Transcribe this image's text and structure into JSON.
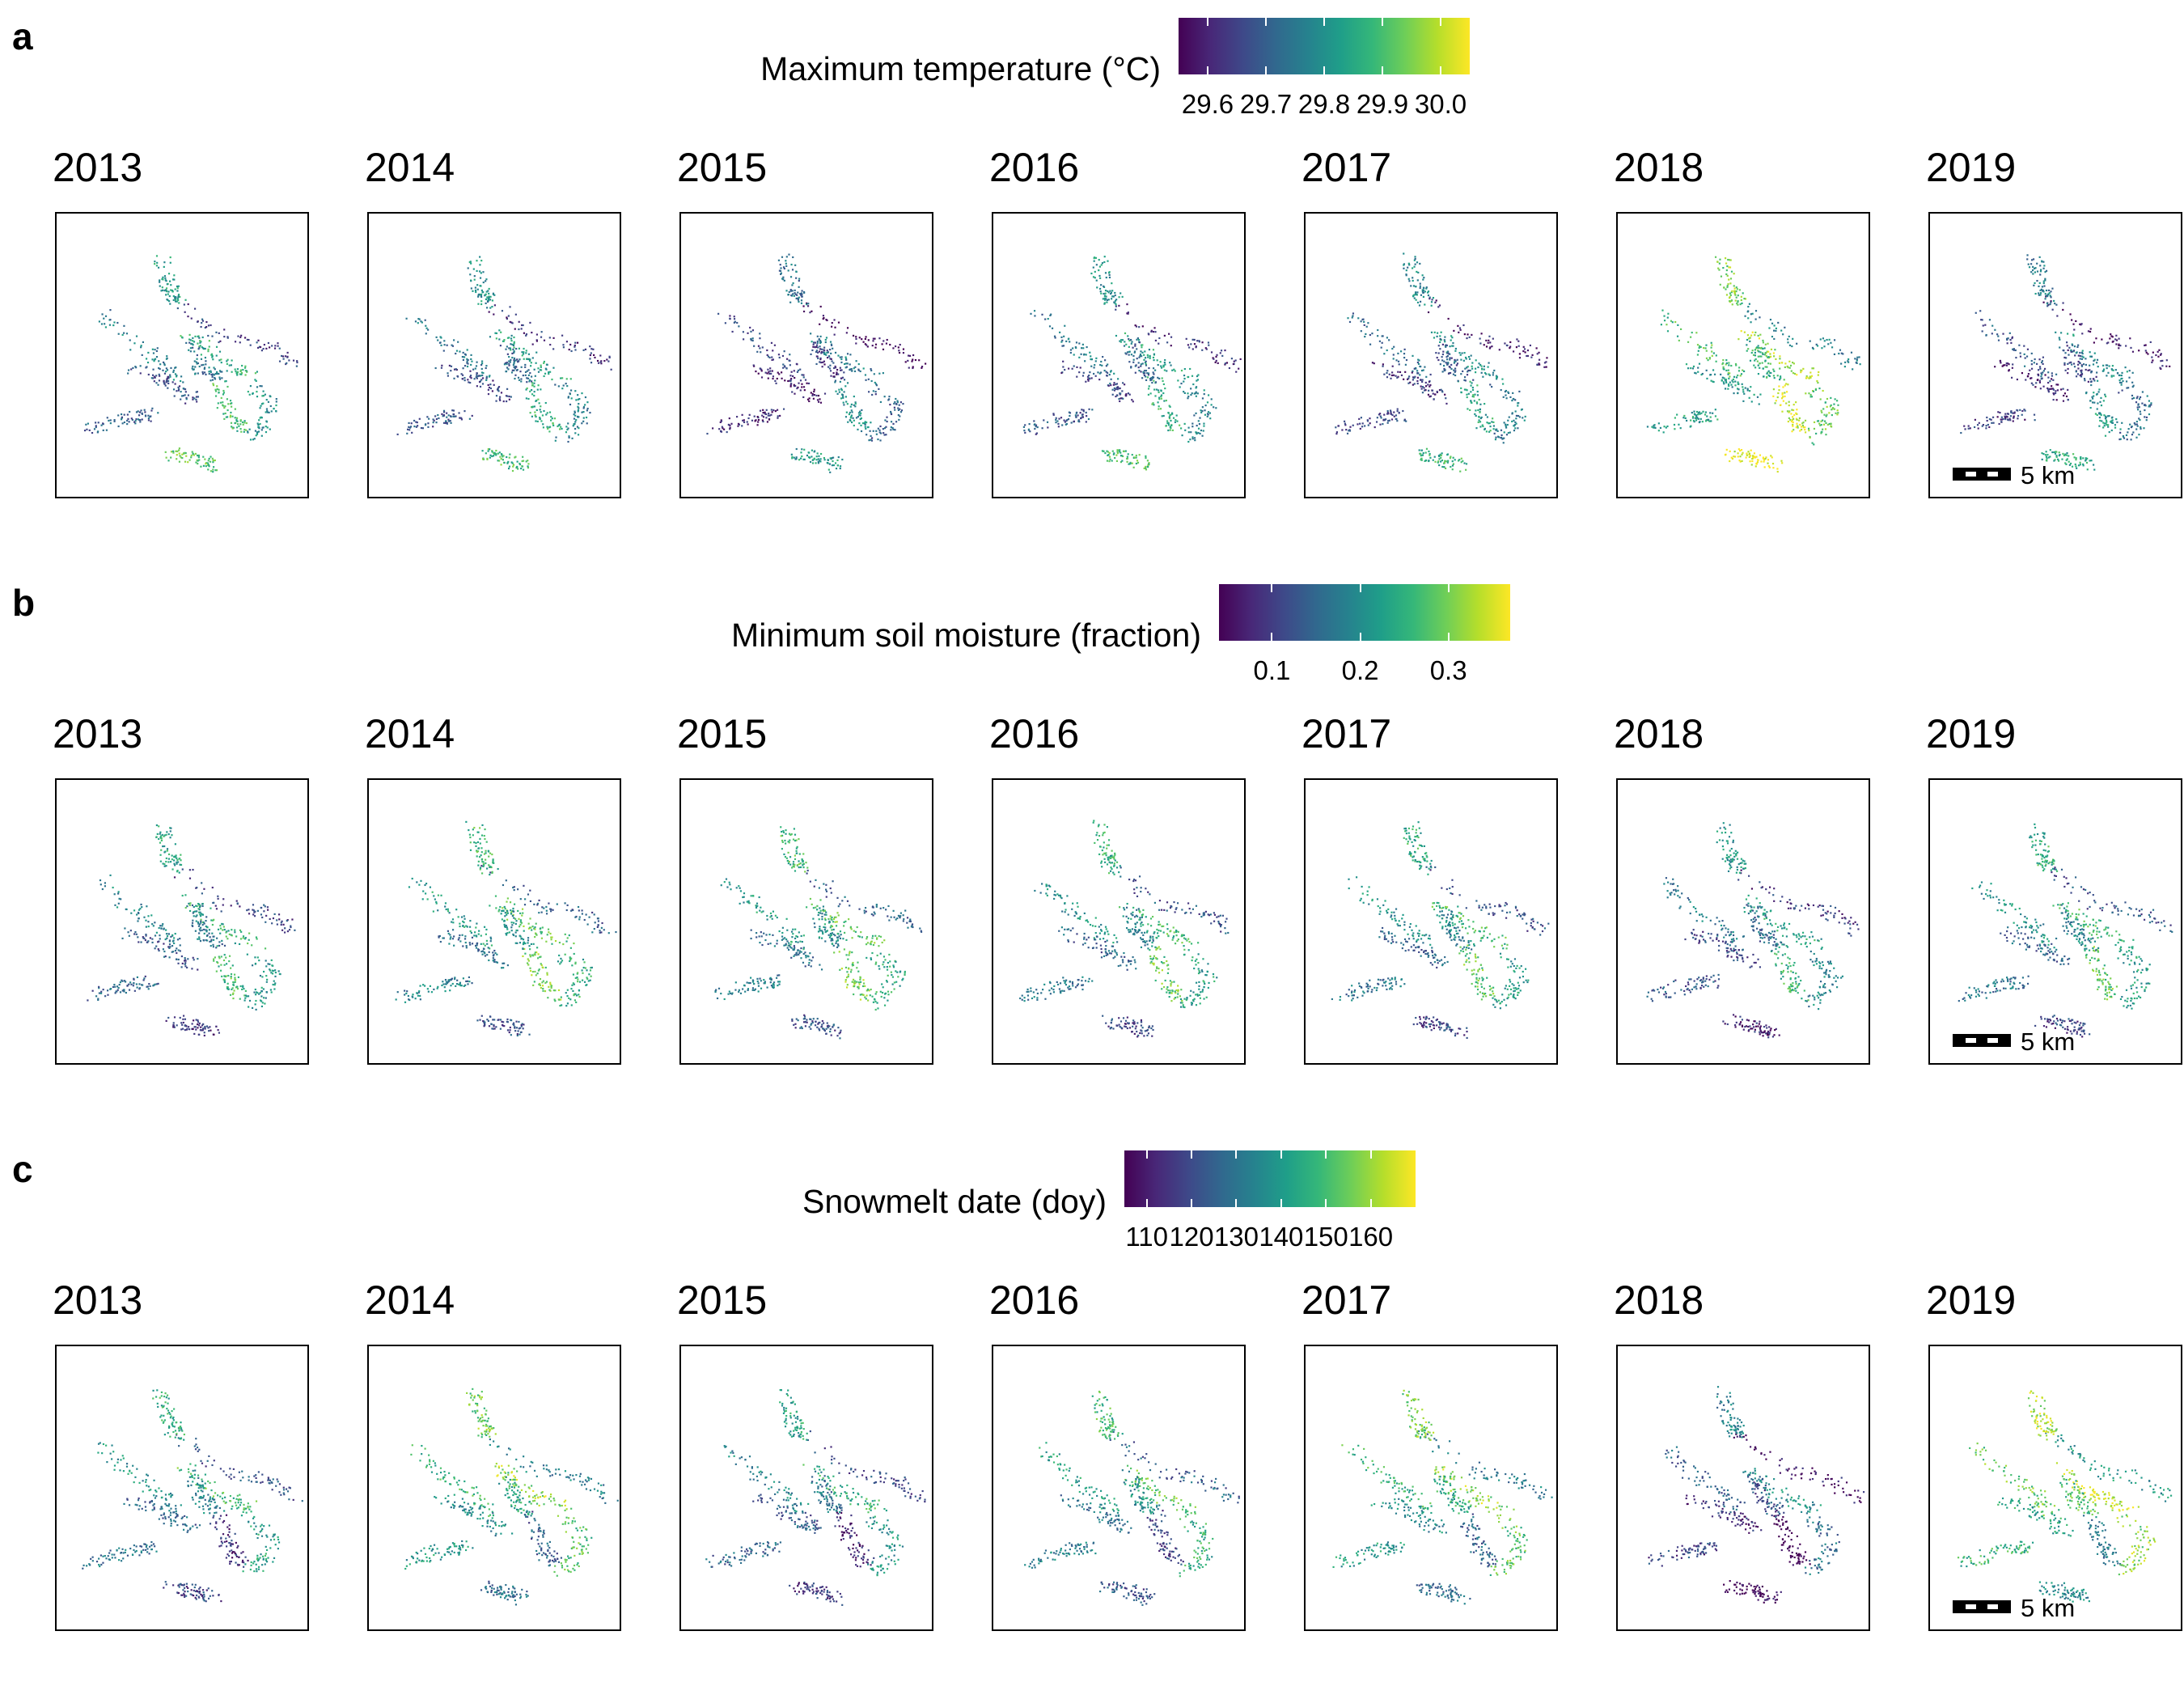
{
  "chart_data": [
    {
      "type": "heatmap",
      "panel": "a",
      "legend_title": "Maximum temperature (°C)",
      "colorscale": "viridis",
      "colorbar_range": [
        29.55,
        30.05
      ],
      "colorbar_ticks": [
        29.6,
        29.7,
        29.8,
        29.9,
        30.0
      ],
      "colorbar_tick_labels": [
        "29.6",
        "29.7",
        "29.8",
        "29.9",
        "30.0"
      ],
      "years": [
        "2013",
        "2014",
        "2015",
        "2016",
        "2017",
        "2018",
        "2019"
      ],
      "year_level": [
        0.5,
        0.45,
        0.3,
        0.45,
        0.4,
        0.75,
        0.35
      ],
      "scalebar_label": "5 km",
      "colors": {
        "low": "#440154",
        "high": "#fde725"
      }
    },
    {
      "type": "heatmap",
      "panel": "b",
      "legend_title": "Minimum soil moisture (fraction)",
      "colorscale": "viridis",
      "colorbar_range": [
        0.04,
        0.37
      ],
      "colorbar_ticks": [
        0.1,
        0.2,
        0.3
      ],
      "colorbar_tick_labels": [
        "0.1",
        "0.2",
        "0.3"
      ],
      "years": [
        "2013",
        "2014",
        "2015",
        "2016",
        "2017",
        "2018",
        "2019"
      ],
      "year_level": [
        0.45,
        0.55,
        0.55,
        0.5,
        0.5,
        0.4,
        0.5
      ],
      "scalebar_label": "5 km",
      "colors": {
        "low": "#440154",
        "high": "#fde725"
      }
    },
    {
      "type": "heatmap",
      "panel": "c",
      "legend_title": "Snowmelt date (doy)",
      "colorscale": "viridis",
      "colorbar_range": [
        105,
        170
      ],
      "colorbar_ticks": [
        110,
        120,
        130,
        140,
        150,
        160
      ],
      "colorbar_tick_labels": [
        "110",
        "120",
        "130",
        "140",
        "150",
        "160"
      ],
      "years": [
        "2013",
        "2014",
        "2015",
        "2016",
        "2017",
        "2018",
        "2019"
      ],
      "year_level": [
        0.45,
        0.6,
        0.4,
        0.5,
        0.6,
        0.25,
        0.7
      ],
      "scalebar_label": "5 km",
      "colors": {
        "low": "#440154",
        "high": "#fde725"
      }
    }
  ]
}
